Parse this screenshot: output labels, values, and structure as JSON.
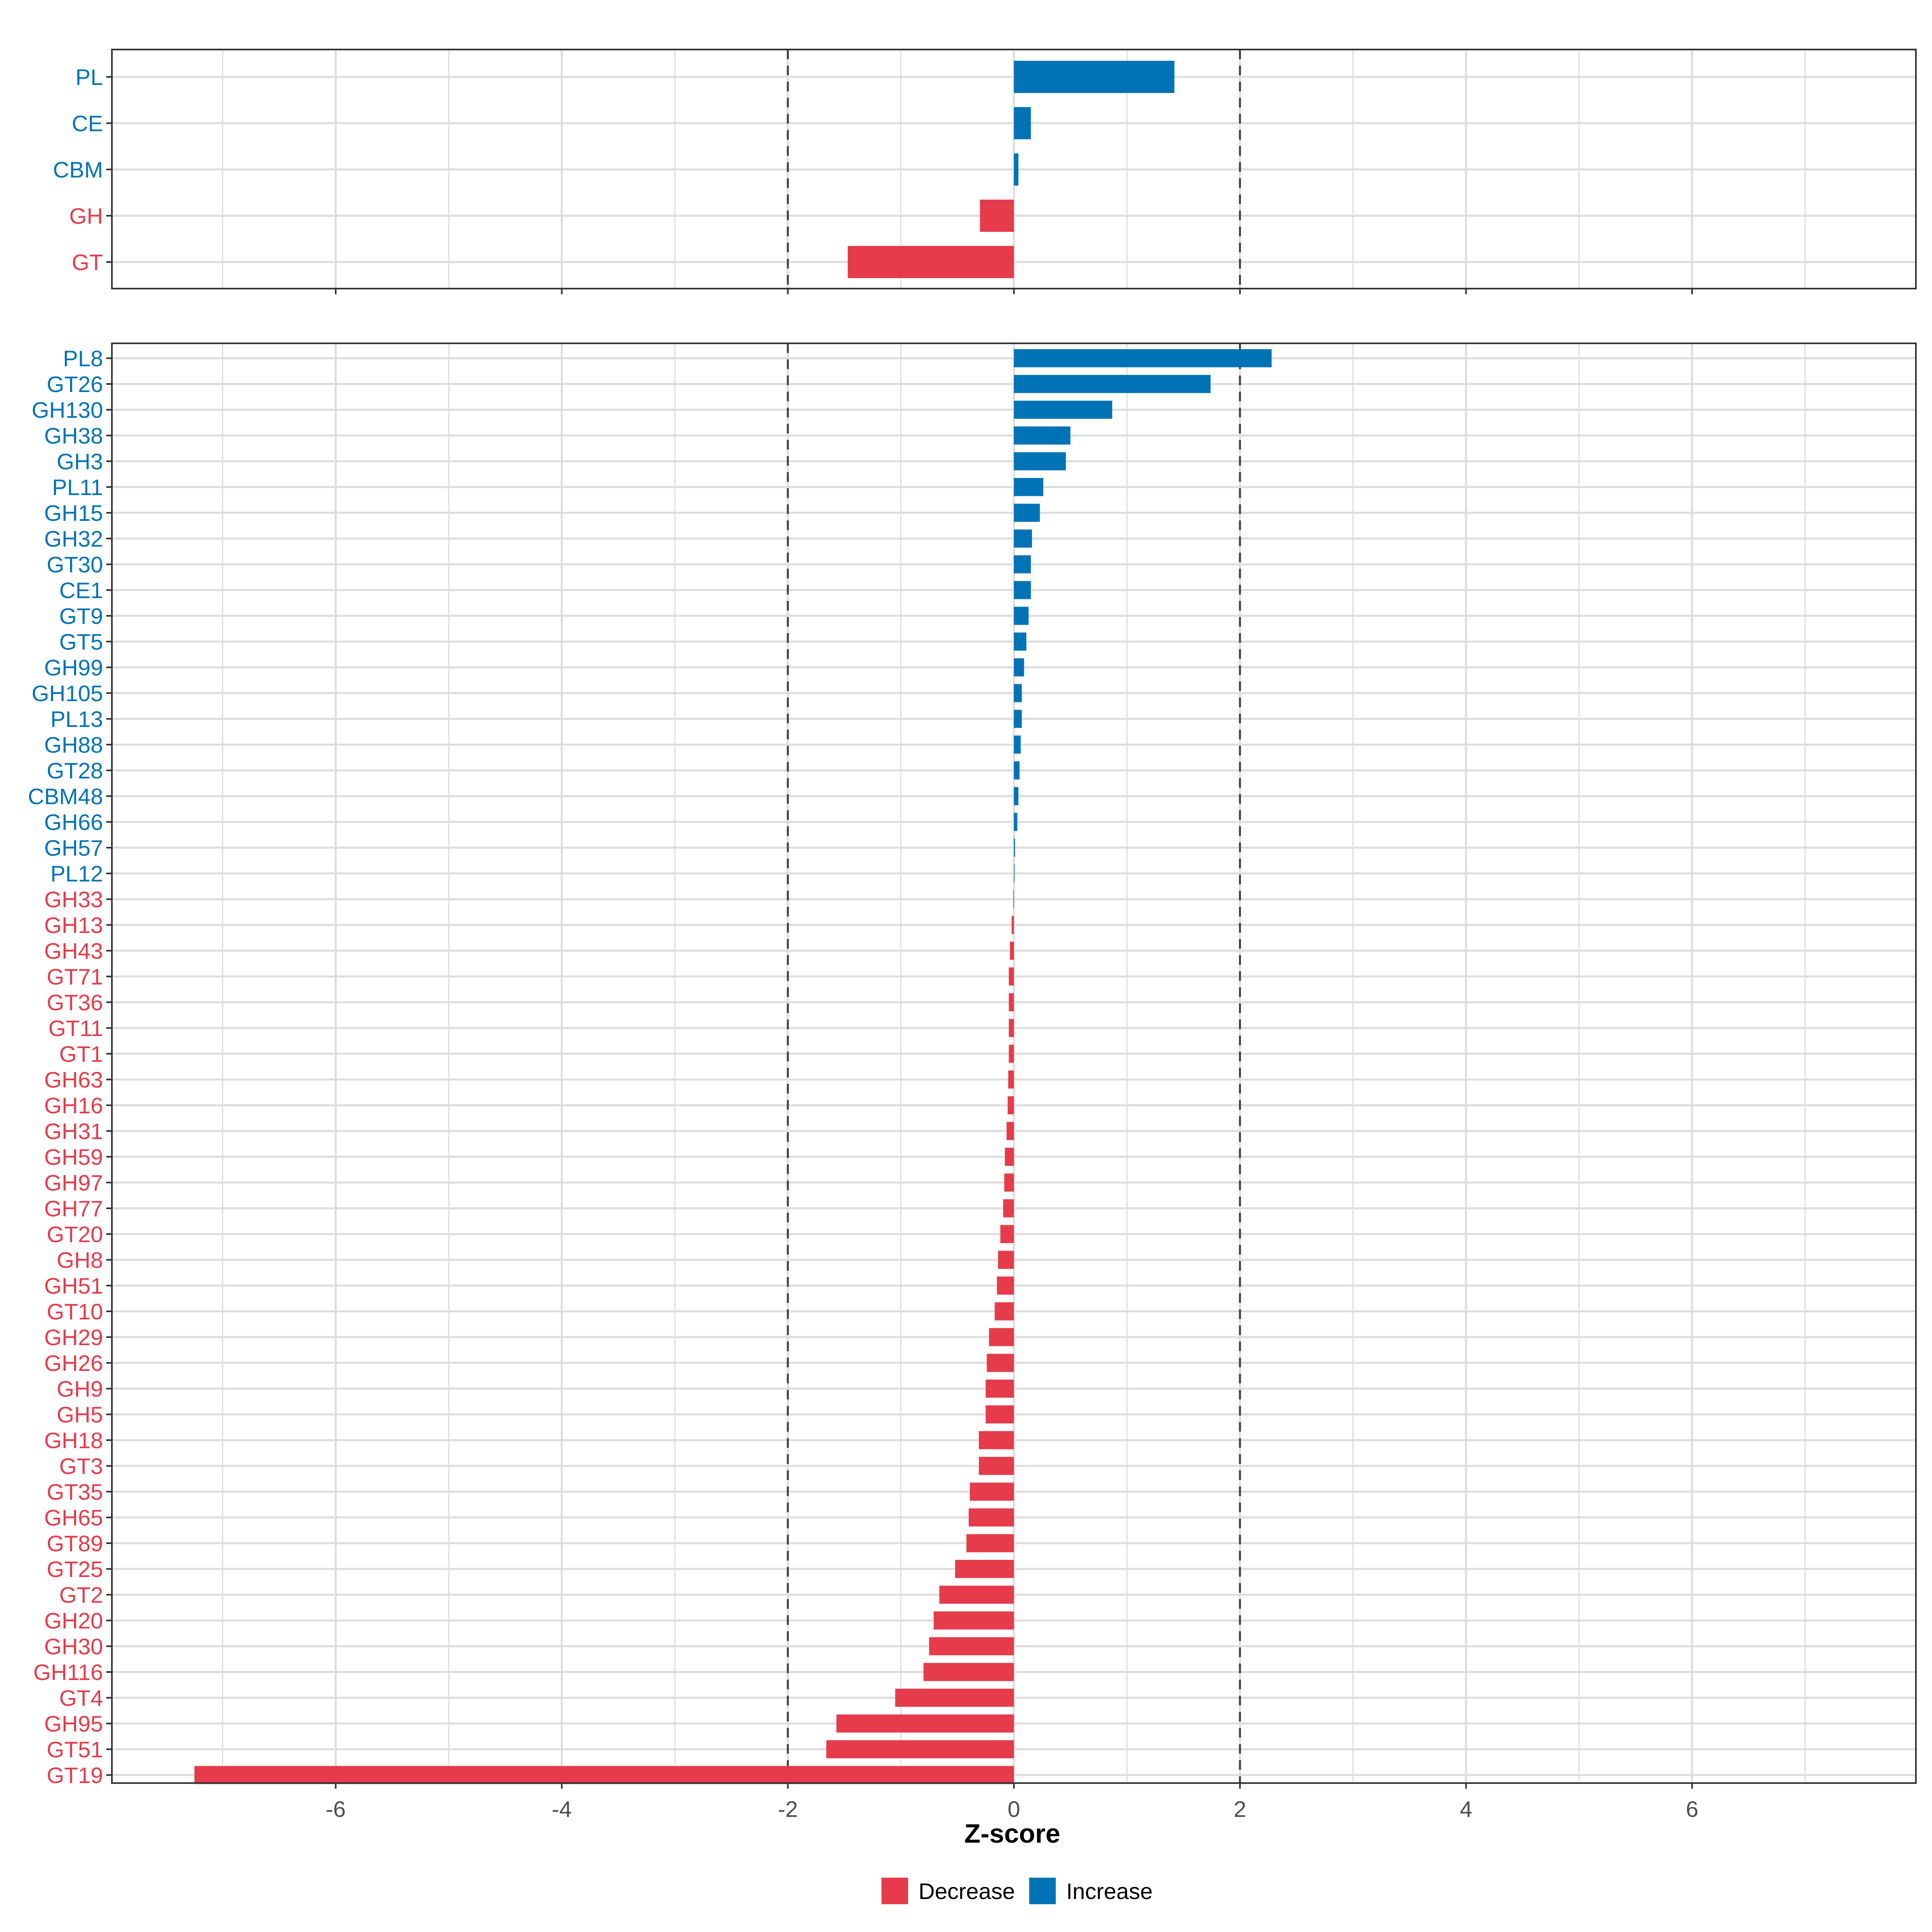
{
  "colors": {
    "increase": "#0073B7",
    "decrease": "#E63B4A",
    "grid": "#DDDDDD",
    "panel_border": "#333333",
    "threshold_line": "#444444"
  },
  "chart_data": [
    {
      "type": "bar",
      "orientation": "horizontal",
      "panel": "top",
      "categories": [
        "PL",
        "CE",
        "CBM",
        "GH",
        "GT"
      ],
      "values": [
        1.42,
        0.15,
        0.04,
        -0.3,
        -1.47
      ],
      "direction": [
        "Increase",
        "Increase",
        "Increase",
        "Decrease",
        "Decrease"
      ],
      "xlim": [
        -7.98,
        7.98
      ],
      "thresholds": [
        -2,
        2
      ],
      "x_major_ticks": [
        -6,
        -4,
        -2,
        0,
        2,
        4,
        6
      ]
    },
    {
      "type": "bar",
      "orientation": "horizontal",
      "panel": "bottom",
      "categories": [
        "PL8",
        "GT26",
        "GH130",
        "GH38",
        "GH3",
        "PL11",
        "GH15",
        "GH32",
        "GT30",
        "CE1",
        "GT9",
        "GT5",
        "GH99",
        "GH105",
        "PL13",
        "GH88",
        "GT28",
        "CBM48",
        "GH66",
        "GH57",
        "PL12",
        "GH33",
        "GH13",
        "GH43",
        "GT71",
        "GT36",
        "GT11",
        "GT1",
        "GH63",
        "GH16",
        "GH31",
        "GH59",
        "GH97",
        "GH77",
        "GT20",
        "GH8",
        "GH51",
        "GT10",
        "GH29",
        "GH26",
        "GH9",
        "GH5",
        "GH18",
        "GT3",
        "GT35",
        "GH65",
        "GT89",
        "GT25",
        "GT2",
        "GH20",
        "GH30",
        "GH116",
        "GT4",
        "GH95",
        "GT51",
        "GT19"
      ],
      "values": [
        2.28,
        1.74,
        0.87,
        0.5,
        0.46,
        0.26,
        0.23,
        0.16,
        0.15,
        0.15,
        0.13,
        0.11,
        0.09,
        0.07,
        0.07,
        0.06,
        0.05,
        0.04,
        0.03,
        0.01,
        0.005,
        -0.005,
        -0.02,
        -0.035,
        -0.045,
        -0.045,
        -0.045,
        -0.045,
        -0.05,
        -0.055,
        -0.065,
        -0.08,
        -0.085,
        -0.095,
        -0.12,
        -0.14,
        -0.15,
        -0.17,
        -0.22,
        -0.24,
        -0.25,
        -0.25,
        -0.31,
        -0.31,
        -0.39,
        -0.4,
        -0.42,
        -0.52,
        -0.66,
        -0.71,
        -0.75,
        -0.8,
        -1.05,
        -1.57,
        -1.66,
        -7.25
      ],
      "direction": [
        "Increase",
        "Increase",
        "Increase",
        "Increase",
        "Increase",
        "Increase",
        "Increase",
        "Increase",
        "Increase",
        "Increase",
        "Increase",
        "Increase",
        "Increase",
        "Increase",
        "Increase",
        "Increase",
        "Increase",
        "Increase",
        "Increase",
        "Increase",
        "Increase",
        "Decrease",
        "Decrease",
        "Decrease",
        "Decrease",
        "Decrease",
        "Decrease",
        "Decrease",
        "Decrease",
        "Decrease",
        "Decrease",
        "Decrease",
        "Decrease",
        "Decrease",
        "Decrease",
        "Decrease",
        "Decrease",
        "Decrease",
        "Decrease",
        "Decrease",
        "Decrease",
        "Decrease",
        "Decrease",
        "Decrease",
        "Decrease",
        "Decrease",
        "Decrease",
        "Decrease",
        "Decrease",
        "Decrease",
        "Decrease",
        "Decrease",
        "Decrease",
        "Decrease",
        "Decrease",
        "Decrease"
      ],
      "xlim": [
        -7.98,
        7.98
      ],
      "thresholds": [
        -2,
        2
      ],
      "x_major_ticks": [
        -6,
        -4,
        -2,
        0,
        2,
        4,
        6
      ],
      "tick_labels": [
        "-6",
        "-4",
        "-2",
        "0",
        "2",
        "4",
        "6"
      ],
      "xlabel": "Z-score"
    }
  ],
  "legend": {
    "placement": "bottom-center",
    "items": [
      {
        "label": "Decrease",
        "key": "decrease"
      },
      {
        "label": "Increase",
        "key": "increase"
      }
    ]
  }
}
